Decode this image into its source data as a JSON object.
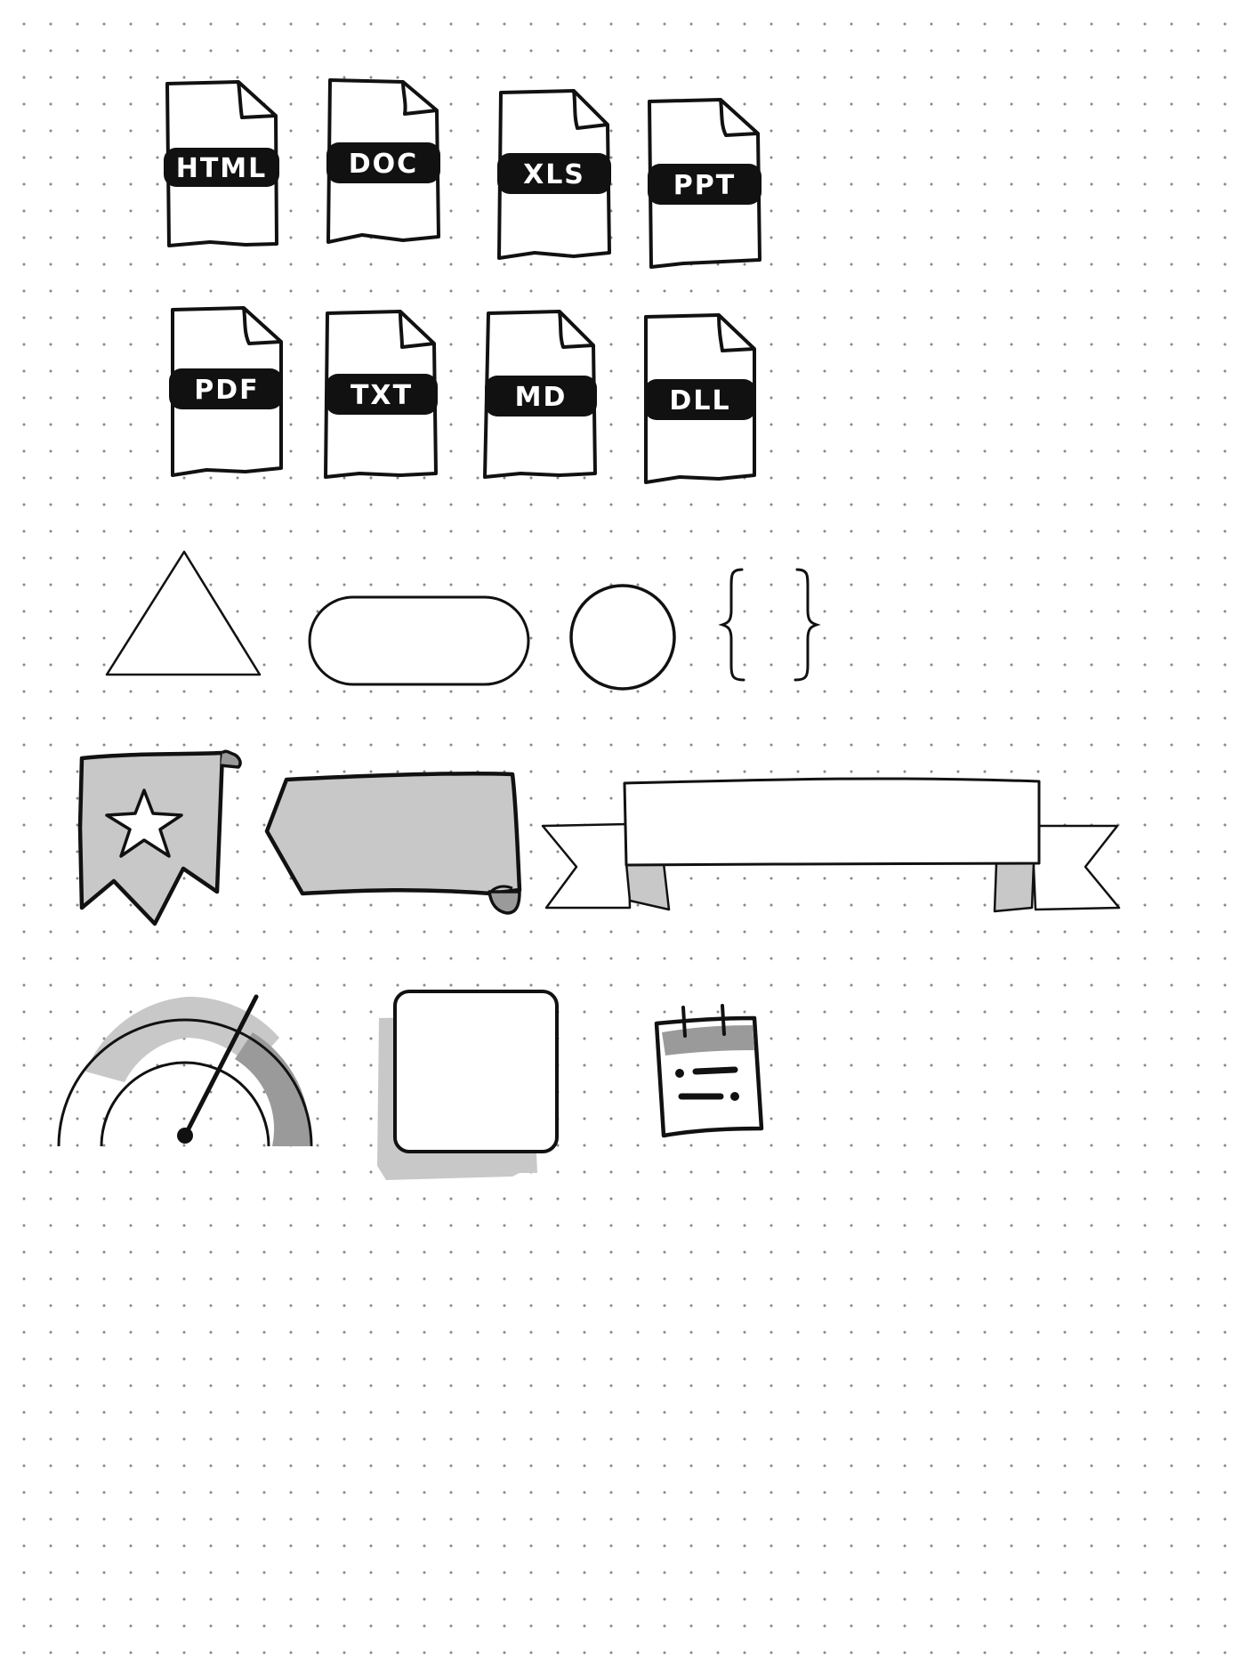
{
  "file_icons": [
    {
      "label": "HTML"
    },
    {
      "label": "DOC"
    },
    {
      "label": "XLS"
    },
    {
      "label": "PPT"
    },
    {
      "label": "PDF"
    },
    {
      "label": "TXT"
    },
    {
      "label": "MD"
    },
    {
      "label": "DLL"
    }
  ],
  "shapes": [
    {
      "name": "triangle-shape"
    },
    {
      "name": "pill-shape"
    },
    {
      "name": "circle-shape"
    },
    {
      "name": "curly-braces-shape"
    }
  ],
  "ribbons": [
    {
      "name": "bookmark-star-icon"
    },
    {
      "name": "scroll-banner-shape"
    },
    {
      "name": "ribbon-banner-shape"
    }
  ],
  "widgets": [
    {
      "name": "gauge-icon"
    },
    {
      "name": "shadow-box-shape"
    },
    {
      "name": "calendar-icon"
    }
  ],
  "colors": {
    "ink": "#111111",
    "gray_fill": "#c8c8c8",
    "dark_gray_fill": "#9a9a9a",
    "paper": "#ffffff",
    "dot_grid": "#8a8a8a"
  }
}
